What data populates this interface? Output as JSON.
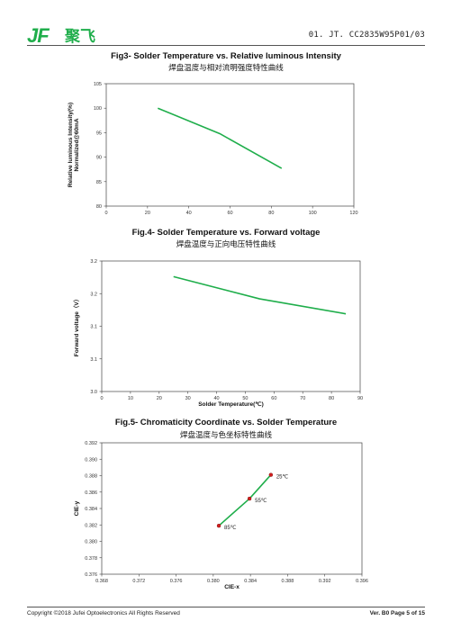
{
  "header": {
    "logo_text": "JF聚飞",
    "doc_code": "01. JT. CC2835W95P01/03"
  },
  "figures": [
    {
      "title": "Fig3- Solder Temperature vs. Relative luminous Intensity",
      "subtitle": "焊盘温度与相对流明强度特性曲线"
    },
    {
      "title": "Fig.4- Solder Temperature vs. Forward voltage",
      "subtitle": "焊盘温度与正向电压特性曲线"
    },
    {
      "title": "Fig.5- Chromaticity Coordinate vs. Solder Temperature",
      "subtitle": "焊盘温度与色坐标特性曲线"
    }
  ],
  "chart_data": [
    {
      "type": "line",
      "title": "Fig3- Solder Temperature vs. Relative luminous Intensity",
      "xlabel": "",
      "ylabel": "Relative luminous Intensity(%) Normalized@60mA",
      "ylabel_lines": [
        "Relative luminous Intensity(%)",
        "Normalized@60mA"
      ],
      "xlim": [
        0,
        120
      ],
      "ylim": [
        80,
        105
      ],
      "xticks": [
        0,
        20,
        40,
        60,
        80,
        100,
        120
      ],
      "yticks": [
        80,
        85,
        90,
        95,
        100,
        105
      ],
      "grid": false,
      "line_color": "#1fae4b",
      "series": [
        {
          "x": [
            25,
            55,
            85
          ],
          "y": [
            100,
            94.8,
            87.7
          ]
        }
      ]
    },
    {
      "type": "line",
      "title": "Fig.4- Solder Temperature vs. Forward voltage",
      "xlabel": "Solder Temperature(℃)",
      "ylabel": "Forward voltage（V）",
      "xlim": [
        0,
        90
      ],
      "ylim": [
        3.0,
        3.2
      ],
      "xticks": [
        0,
        10,
        20,
        30,
        40,
        50,
        60,
        70,
        80,
        90
      ],
      "yticks": [
        3.0,
        3.05,
        3.1,
        3.15,
        3.2
      ],
      "ytick_labels": [
        "3.0",
        "3.1",
        "3.1",
        "3.2",
        "3.2"
      ],
      "grid": false,
      "line_color": "#1fae4b",
      "series": [
        {
          "x": [
            25,
            55,
            85
          ],
          "y": [
            3.176,
            3.142,
            3.119
          ]
        }
      ]
    },
    {
      "type": "scatter",
      "title": "Fig.5- Chromaticity Coordinate vs. Solder Temperature",
      "xlabel": "CIE-x",
      "ylabel": "CIE-y",
      "xlim": [
        0.368,
        0.396
      ],
      "ylim": [
        0.376,
        0.392
      ],
      "xticks": [
        0.368,
        0.372,
        0.376,
        0.38,
        0.384,
        0.388,
        0.392,
        0.396
      ],
      "xtick_labels": [
        "0.368",
        "0.372",
        "0.376",
        "0.380",
        "0.384",
        "0.388",
        "0.392",
        "0.396"
      ],
      "yticks": [
        0.376,
        0.378,
        0.38,
        0.382,
        0.384,
        0.386,
        0.388,
        0.39,
        0.392
      ],
      "ytick_labels": [
        "0.376",
        "0.378",
        "0.380",
        "0.382",
        "0.384",
        "0.386",
        "0.388",
        "0.390",
        "0.392"
      ],
      "grid": false,
      "line_color": "#1fae4b",
      "marker_color": "#d11f1f",
      "series": [
        {
          "x": [
            0.3806,
            0.3839,
            0.3862
          ],
          "y": [
            0.3819,
            0.3852,
            0.3881
          ],
          "labels": [
            "85℃",
            "55℃",
            "25℃"
          ]
        }
      ]
    }
  ],
  "footer": {
    "copyright": "Copyright ©2018 Jufei Optoelectronics All Rights Reserved",
    "version": "Ver. B0 Page 5 of 15"
  }
}
